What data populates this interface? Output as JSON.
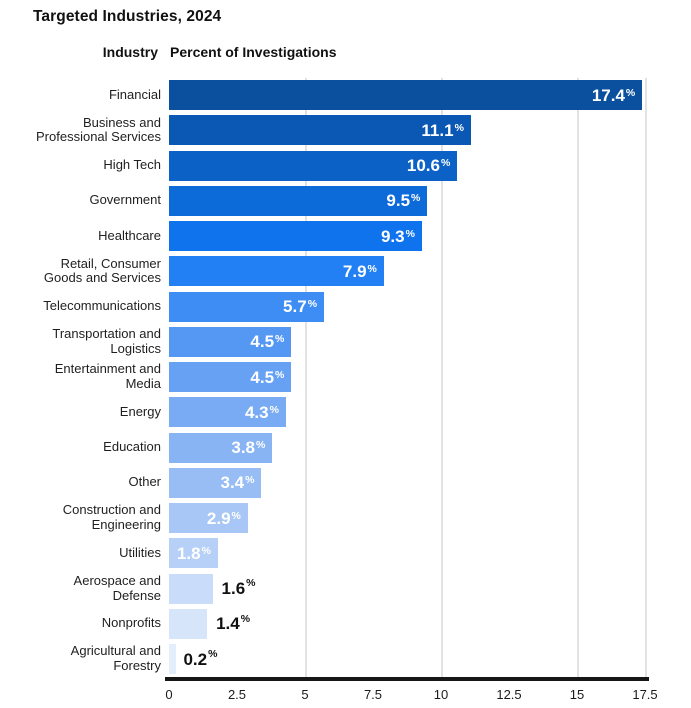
{
  "title": "Targeted Industries, 2024",
  "header": {
    "industry_label": "Industry",
    "percent_label": "Percent of Investigations"
  },
  "colors": {
    "background": "#ffffff",
    "axis": "#161616",
    "gridline": "#e2e2e2",
    "category_text": "#1f1f1f",
    "value_inside_text": "#ffffff",
    "value_outside_text": "#111111"
  },
  "chart_data": {
    "type": "bar",
    "orientation": "horizontal",
    "title": "Targeted Industries, 2024",
    "xlabel": "Percent of Investigations",
    "ylabel": "Industry",
    "xlim": [
      0,
      17.5
    ],
    "x_tick_values": [
      0,
      2.5,
      5,
      7.5,
      10,
      12.5,
      15,
      17.5
    ],
    "x_tick_labels": [
      "0",
      "2.5",
      "5",
      "7.5",
      "10",
      "12.5",
      "15",
      "17.5"
    ],
    "gridlines_at": [
      5,
      10,
      15,
      17.5
    ],
    "value_suffix": "%",
    "categories": [
      "Financial",
      "Business and\nProfessional Services",
      "High Tech",
      "Government",
      "Healthcare",
      "Retail, Consumer\nGoods and Services",
      "Telecommunications",
      "Transportation and\nLogistics",
      "Entertainment and\nMedia",
      "Energy",
      "Education",
      "Other",
      "Construction and\nEngineering",
      "Utilities",
      "Aerospace and\nDefense",
      "Nonprofits",
      "Agricultural and\nForestry"
    ],
    "values": [
      17.4,
      11.1,
      10.6,
      9.5,
      9.3,
      7.9,
      5.7,
      4.5,
      4.5,
      4.3,
      3.8,
      3.4,
      2.9,
      1.8,
      1.6,
      1.4,
      0.2
    ],
    "bar_colors": [
      "#0b4f9f",
      "#0b58b4",
      "#0c61c6",
      "#0d6ad9",
      "#0e73ec",
      "#2380f4",
      "#3d8df4",
      "#5598f3",
      "#66a1f3",
      "#78abf3",
      "#89b4f4",
      "#98bdf5",
      "#a8c7f6",
      "#b7d0f7",
      "#c9dcf9",
      "#d7e5fa",
      "#e4edfc"
    ],
    "value_label_inside": [
      true,
      true,
      true,
      true,
      true,
      true,
      true,
      true,
      true,
      true,
      true,
      true,
      true,
      true,
      false,
      false,
      false
    ]
  }
}
